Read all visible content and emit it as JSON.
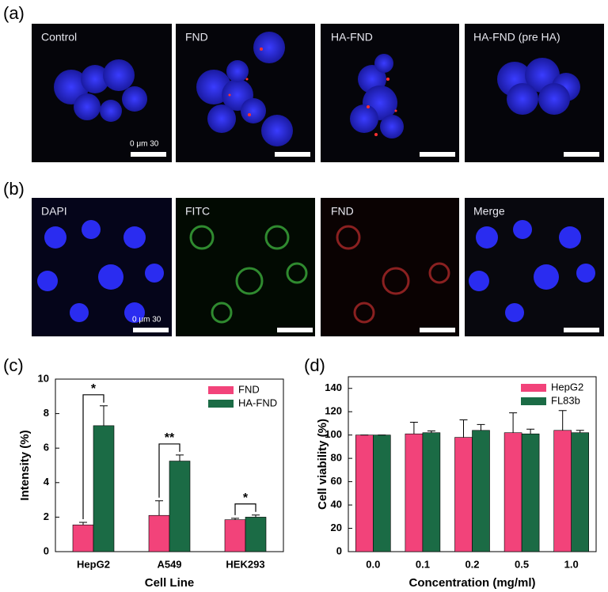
{
  "panels": {
    "a": {
      "label": "(a)",
      "images": [
        "Control",
        "FND",
        "HA-FND",
        "HA-FND (pre HA)"
      ],
      "scale_label": "0 μm 30"
    },
    "b": {
      "label": "(b)",
      "images": [
        "DAPI",
        "FITC",
        "FND",
        "Merge"
      ],
      "scale_label": "0 μm 30"
    }
  },
  "chart_data": [
    {
      "type": "bar",
      "panel_label": "(c)",
      "xlabel": "Cell Line",
      "ylabel": "Intensity (%)",
      "categories": [
        "HepG2",
        "A549",
        "HEK293"
      ],
      "series": [
        {
          "name": "FND",
          "color": "#f2437a",
          "values": [
            1.55,
            2.1,
            1.85
          ],
          "errors": [
            0.15,
            0.85,
            0.08
          ]
        },
        {
          "name": "HA-FND",
          "color": "#1b6b45",
          "values": [
            7.3,
            5.25,
            2.0
          ],
          "errors": [
            1.15,
            0.35,
            0.12
          ]
        }
      ],
      "significance": [
        "*",
        "**",
        "*"
      ],
      "ylim": [
        0,
        10
      ],
      "yticks": [
        0,
        2,
        4,
        6,
        8,
        10
      ],
      "legend": "upper right"
    },
    {
      "type": "bar",
      "panel_label": "(d)",
      "xlabel": "Concentration (mg/ml)",
      "ylabel": "Cell viability (%)",
      "categories": [
        "0.0",
        "0.1",
        "0.2",
        "0.5",
        "1.0"
      ],
      "series": [
        {
          "name": "HepG2",
          "color": "#f2437a",
          "values": [
            100,
            101,
            98,
            102,
            104
          ],
          "errors": [
            0,
            10,
            15,
            17,
            17
          ]
        },
        {
          "name": "FL83b",
          "color": "#1b6b45",
          "values": [
            100,
            102,
            104,
            101,
            102
          ],
          "errors": [
            0,
            1.5,
            5,
            4,
            2
          ]
        }
      ],
      "ylim": [
        0,
        150
      ],
      "yticks": [
        0,
        20,
        40,
        60,
        80,
        100,
        120,
        140
      ],
      "legend": "upper right"
    }
  ]
}
